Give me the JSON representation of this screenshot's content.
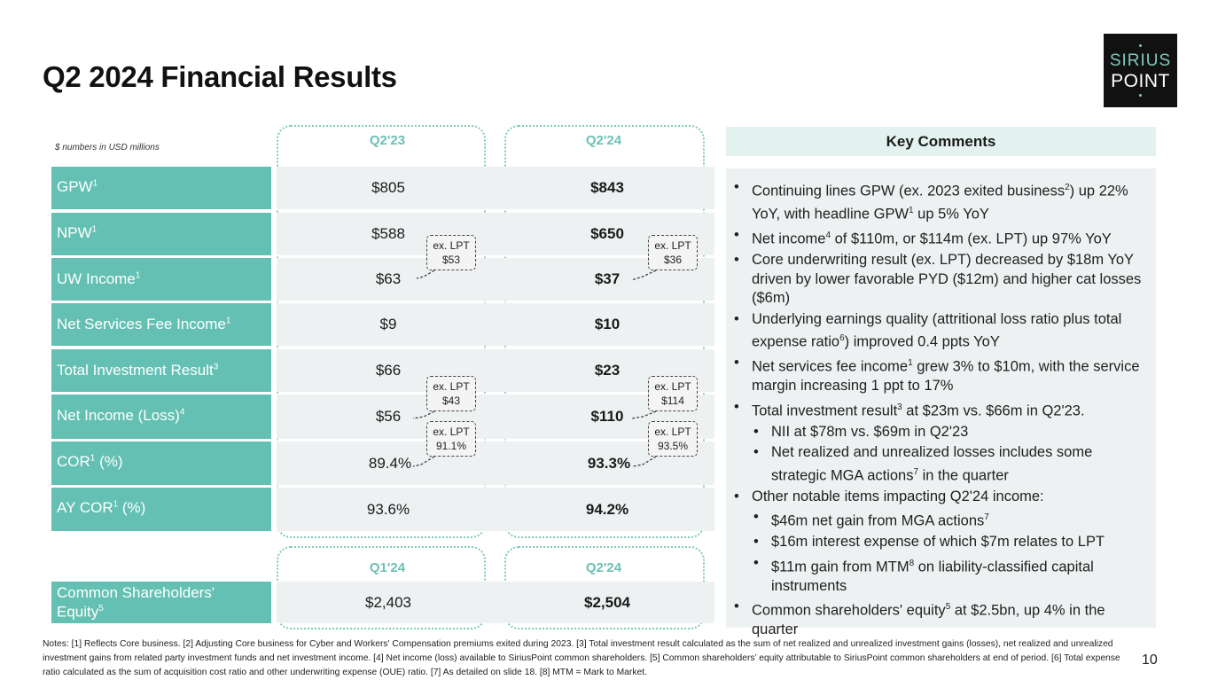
{
  "title": "Q2 2024 Financial Results",
  "logo": {
    "line1": "SIRIUS",
    "line2": "POINT"
  },
  "units_note": "$ numbers in USD millions",
  "columns": {
    "q2_23": "Q2'23",
    "q2_24": "Q2'24",
    "q1_24": "Q1'24",
    "q2_24b": "Q2'24"
  },
  "rows": [
    {
      "label": "GPW",
      "sup": "1",
      "suffix": "",
      "v1": "$805",
      "v2": "$843"
    },
    {
      "label": "NPW",
      "sup": "1",
      "suffix": "",
      "v1": "$588",
      "v2": "$650"
    },
    {
      "label": "UW Income",
      "sup": "1",
      "suffix": "",
      "v1": "$63",
      "v2": "$37"
    },
    {
      "label": "Net Services Fee Income",
      "sup": "1",
      "suffix": "",
      "v1": "$9",
      "v2": "$10"
    },
    {
      "label": "Total Investment Result",
      "sup": "3",
      "suffix": "",
      "v1": "$66",
      "v2": "$23"
    },
    {
      "label": "Net Income (Loss)",
      "sup": "4",
      "suffix": "",
      "v1": "$56",
      "v2": "$110"
    },
    {
      "label": "COR",
      "sup": "1",
      "suffix": " (%)",
      "v1": "89.4%",
      "v2": "93.3%"
    },
    {
      "label": "AY COR",
      "sup": "1",
      "suffix": " (%)",
      "v1": "93.6%",
      "v2": "94.2%"
    }
  ],
  "equity": {
    "label_line1": "Common Shareholders'",
    "label_line2": "Equity",
    "sup": "5",
    "v1": "$2,403",
    "v2": "$2,504"
  },
  "callouts": {
    "uw_q2_23": {
      "line1": "ex. LPT",
      "line2": "$53"
    },
    "uw_q2_24": {
      "line1": "ex. LPT",
      "line2": "$36"
    },
    "ni_q2_23": {
      "line1": "ex. LPT",
      "line2": "$43"
    },
    "ni_q2_24": {
      "line1": "ex. LPT",
      "line2": "$114"
    },
    "cor_q2_23": {
      "line1": "ex. LPT",
      "line2": "91.1%"
    },
    "cor_q2_24": {
      "line1": "ex. LPT",
      "line2": "93.5%"
    }
  },
  "key_comments": {
    "heading": "Key Comments",
    "b1": {
      "t1": "Continuing lines GPW (ex. 2023 exited business",
      "s1": "2",
      "t2": ") up 22% YoY, with headline GPW",
      "s2": "1",
      "t3": " up 5% YoY"
    },
    "b2": {
      "t1": "Net income",
      "s1": "4",
      "t2": " of $110m, or $114m (ex. LPT) up 97% YoY"
    },
    "b3": "Core underwriting result (ex. LPT) decreased by $18m YoY driven by lower favorable PYD ($12m) and higher cat losses ($6m)",
    "b4": {
      "t1": "Underlying earnings quality (attritional loss ratio plus total expense ratio",
      "s1": "6",
      "t2": ") improved 0.4 ppts YoY"
    },
    "b5": {
      "t1": "Net services fee income",
      "s1": "1",
      "t2": " grew 3% to $10m, with the service margin increasing 1 ppt to 17%"
    },
    "b6": {
      "t1": "Total investment result",
      "s1": "3",
      "t2": " at $23m vs. $66m in Q2'23."
    },
    "b6a": "NII at $78m vs. $69m in Q2'23",
    "b6b": {
      "t1": "Net realized and unrealized losses includes some strategic MGA actions",
      "s1": "7",
      "t2": " in the quarter"
    },
    "b7": "Other notable items impacting Q2'24 income:",
    "b7a": {
      "t1": "$46m net gain from MGA actions",
      "s1": "7"
    },
    "b7b": "$16m interest expense of which $7m relates to LPT",
    "b7c": {
      "t1": "$11m gain from MTM",
      "s1": "8",
      "t2": " on liability-classified capital instruments"
    },
    "b8": {
      "t1": "Common shareholders' equity",
      "s1": "5",
      "t2": " at $2.5bn, up 4% in the quarter"
    }
  },
  "notes": "Notes: [1] Reflects Core business.  [2] Adjusting Core business for Cyber and Workers' Compensation premiums exited during 2023. [3] Total investment result calculated as the sum of net realized and unrealized investment gains (losses), net realized and unrealized investment gains from related party investment funds and net investment income. [4] Net income (loss) available to SiriusPoint common shareholders. [5] Common shareholders’ equity attributable to SiriusPoint common shareholders at end of period. [6] Total expense ratio calculated as the sum of acquisition cost ratio and other underwriting expense (OUE) ratio. [7] As detailed on slide 18. [8] MTM = Mark to Market.",
  "page_number": "10",
  "colors": {
    "teal": "#64c0b3",
    "teal_light": "#e3f2ef",
    "band_gray": "#eef1f2"
  }
}
